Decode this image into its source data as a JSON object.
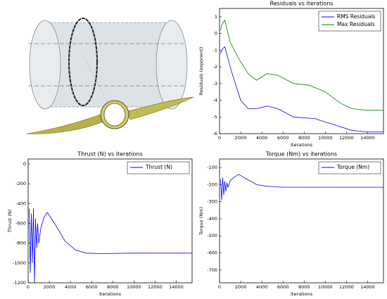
{
  "chart_data": [
    {
      "type": "line",
      "title": "Residuals vs iterations",
      "xlabel": "Iterations",
      "ylabel": "Residuals (exponent)",
      "xlim": [
        0,
        15500
      ],
      "xticks": [
        0,
        2000,
        4000,
        6000,
        8000,
        10000,
        12000,
        14000
      ],
      "ylim": [
        -6,
        1.5
      ],
      "yticks": [
        1,
        0,
        -1,
        -2,
        -3,
        -4,
        -5,
        -6
      ],
      "legend": "upper right",
      "series": [
        {
          "name": "RMS Residuals",
          "color": "#0000ff",
          "x": [
            100,
            300,
            500,
            800,
            1100,
            1500,
            2000,
            2700,
            3500,
            4500,
            5500,
            7000,
            9000,
            10000,
            11500,
            12500,
            14000,
            15500
          ],
          "values": [
            -1.2,
            -0.9,
            -0.8,
            -1.5,
            -2.2,
            -3.0,
            -4.0,
            -4.5,
            -4.5,
            -4.35,
            -4.5,
            -5.0,
            -5.1,
            -5.3,
            -5.6,
            -5.8,
            -5.9,
            -5.9
          ]
        },
        {
          "name": "Max Residuals",
          "color": "#008000",
          "x": [
            100,
            200,
            500,
            1000,
            1800,
            2700,
            3500,
            4500,
            5500,
            7000,
            8500,
            10000,
            11500,
            12500,
            14000,
            15500
          ],
          "values": [
            0.2,
            0.5,
            0.8,
            -0.5,
            -1.5,
            -2.4,
            -2.8,
            -2.4,
            -2.5,
            -3.0,
            -3.1,
            -3.5,
            -4.2,
            -4.5,
            -4.6,
            -4.6
          ]
        }
      ]
    },
    {
      "type": "line",
      "title": "Thrust (N) vs iterations",
      "xlabel": "Iterations",
      "ylabel": "Thrust (N)",
      "xlim": [
        0,
        15500
      ],
      "xticks": [
        0,
        2000,
        4000,
        6000,
        8000,
        10000,
        12000,
        14000
      ],
      "ylim": [
        -1200,
        50
      ],
      "yticks": [
        0,
        -200,
        -400,
        -600,
        -800,
        -1000,
        -1200
      ],
      "legend": "upper right",
      "series": [
        {
          "name": "Thrust (N)",
          "color": "#0000ff",
          "x": [
            100,
            200,
            300,
            400,
            500,
            600,
            700,
            800,
            900,
            1000,
            1200,
            1500,
            1800,
            2500,
            3500,
            4500,
            5500,
            7000,
            10000,
            15500
          ],
          "values": [
            -450,
            -1100,
            -500,
            -1000,
            -450,
            -1200,
            -550,
            -850,
            -600,
            -800,
            -650,
            -540,
            -490,
            -600,
            -780,
            -870,
            -900,
            -905,
            -900,
            -900
          ]
        }
      ]
    },
    {
      "type": "line",
      "title": "Torque (Nm) vs iterations",
      "xlabel": "Iterations",
      "ylabel": "Torque (Nm)",
      "xlim": [
        0,
        15500
      ],
      "xticks": [
        0,
        2000,
        4000,
        6000,
        8000,
        10000,
        12000,
        14000
      ],
      "ylim": [
        -775,
        -50
      ],
      "yticks": [
        -100,
        -200,
        -300,
        -400,
        -500,
        -600,
        -700
      ],
      "legend": "upper right",
      "series": [
        {
          "name": "Torque (Nm)",
          "color": "#0000ff",
          "x": [
            100,
            200,
            300,
            400,
            500,
            600,
            700,
            800,
            1000,
            1300,
            1800,
            2500,
            3500,
            4500,
            6000,
            10000,
            15500
          ],
          "values": [
            -170,
            -290,
            -160,
            -260,
            -180,
            -240,
            -190,
            -215,
            -180,
            -160,
            -140,
            -165,
            -200,
            -210,
            -215,
            -215,
            -215
          ]
        }
      ]
    }
  ]
}
